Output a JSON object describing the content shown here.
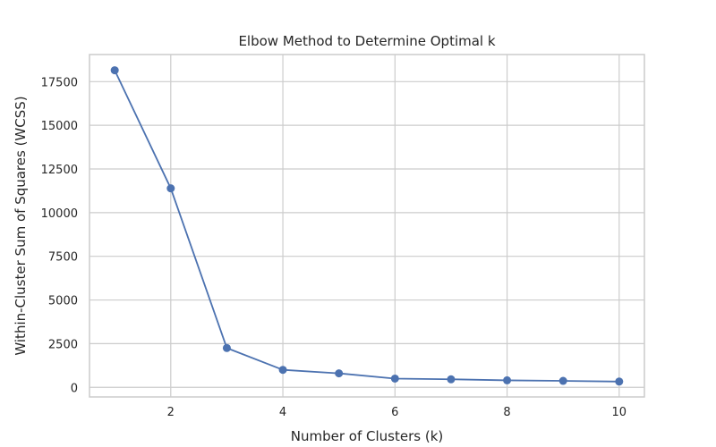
{
  "chart_data": {
    "type": "line",
    "title": "Elbow Method to Determine Optimal k",
    "xlabel": "Number of Clusters (k)",
    "ylabel": "Within-Cluster Sum of Squares (WCSS)",
    "x": [
      1,
      2,
      3,
      4,
      5,
      6,
      7,
      8,
      9,
      10
    ],
    "series": [
      {
        "values": [
          18150,
          11390,
          2250,
          1000,
          800,
          500,
          460,
          400,
          370,
          330
        ],
        "color": "#4c72b0",
        "marker": "circle"
      }
    ],
    "xlim": [
      0.55,
      10.45
    ],
    "ylim": [
      -550,
      19050
    ],
    "xticks": [
      2,
      4,
      6,
      8,
      10
    ],
    "yticks": [
      0,
      2500,
      5000,
      7500,
      10000,
      12500,
      15000,
      17500
    ],
    "grid": true
  }
}
